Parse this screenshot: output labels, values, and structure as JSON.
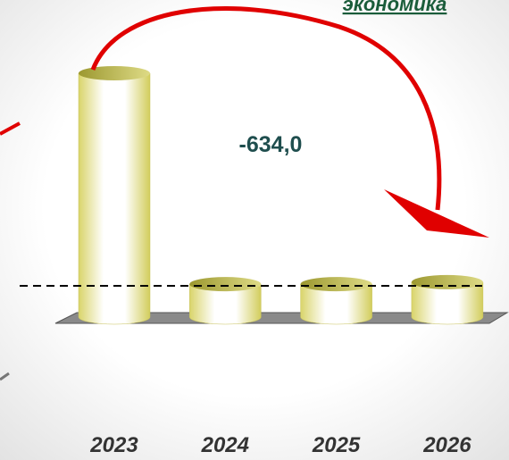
{
  "chart_data": {
    "type": "bar3d",
    "title": "экономика",
    "annotation": "-634,0",
    "categories": [
      "2023",
      "2024",
      "2025",
      "2026"
    ],
    "values": [
      740,
      100,
      100,
      106
    ],
    "color": "#f0ec9a"
  }
}
